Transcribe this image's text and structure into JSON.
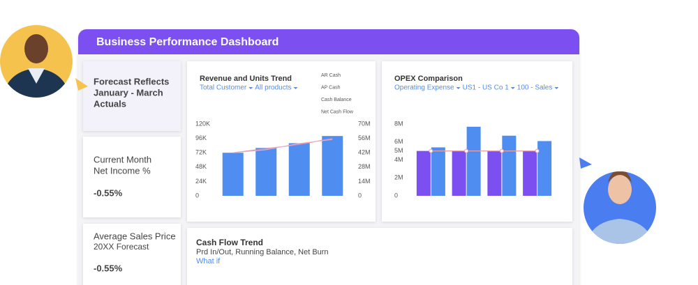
{
  "header": {
    "title": "Business Performance Dashboard"
  },
  "cards": [
    {
      "lines": [
        "Forecast Reflects",
        "January - March",
        "Actuals"
      ]
    },
    {
      "lines": [
        "Current Month",
        "Net Income %"
      ],
      "value": "-0.55%"
    },
    {
      "lines": [
        "Average Sales Price",
        "20XX Forecast"
      ],
      "value": "-0.55%"
    }
  ],
  "chart_data": [
    {
      "type": "bar",
      "title": "Revenue and Units Trend",
      "filters": [
        "Total Customer",
        "All products"
      ],
      "legend_labels": [
        "AR Cash",
        "AP Cash",
        "Cash Balance",
        "Net Cash Flow"
      ],
      "categories": [
        null,
        null,
        null,
        null
      ],
      "series": [
        {
          "kind": "bar",
          "color": "#4f8ef0",
          "values": [
            72000,
            80000,
            88000,
            100000
          ]
        },
        {
          "kind": "line",
          "axis": "y2",
          "color": "#d98aa6",
          "values": [
            42000000,
            46000000,
            50000000,
            56000000
          ]
        },
        {
          "kind": "line",
          "axis": "y2",
          "color": "#e7b3c8",
          "values": [
            42000000,
            45000000,
            51000000,
            55000000
          ]
        }
      ],
      "ylim": [
        0,
        120000
      ],
      "yticks": [
        0,
        {
          "value": 24000,
          "label": "24K"
        },
        {
          "value": 48000,
          "label": "48K"
        },
        {
          "value": 72000,
          "label": "72K"
        },
        {
          "value": 96000,
          "label": "96K"
        },
        {
          "value": 120000,
          "label": "120K"
        }
      ],
      "y2lim": [
        0,
        70000000
      ],
      "y2ticks": [
        0,
        {
          "value": 14000000,
          "label": "14M"
        },
        {
          "value": 28000000,
          "label": "28M"
        },
        {
          "value": 42000000,
          "label": "42M"
        },
        {
          "value": 56000000,
          "label": "56M"
        },
        {
          "value": 70000000,
          "label": "70M"
        }
      ]
    },
    {
      "type": "bar",
      "title": "OPEX Comparison",
      "filters": [
        "Operating Expense",
        "US1 - US Co 1",
        "100 - Sales"
      ],
      "categories": [
        null,
        null,
        null,
        null
      ],
      "series": [
        {
          "kind": "bar",
          "color": "#7b4ff0",
          "values": [
            5000000,
            5000000,
            5000000,
            5000000
          ]
        },
        {
          "kind": "bar",
          "color": "#4f8ef0",
          "values": [
            5400000,
            7700000,
            6700000,
            6100000
          ]
        },
        {
          "kind": "line",
          "color": "#e6a0a8",
          "values": [
            5000000,
            5000000,
            5000000,
            5000000
          ]
        }
      ],
      "ylim": [
        0,
        8000000
      ],
      "yticks": [
        0,
        {
          "value": 2000000,
          "label": "2M"
        },
        {
          "value": 4000000,
          "label": "4M"
        },
        {
          "value": 5000000,
          "label": "5M"
        },
        {
          "value": 6000000,
          "label": "6M"
        },
        {
          "value": 8000000,
          "label": "8M"
        }
      ]
    }
  ],
  "cash_flow": {
    "title": "Cash Flow Trend",
    "subtitle": "Prd In/Out, Running Balance, Net Burn",
    "link": "What if"
  }
}
